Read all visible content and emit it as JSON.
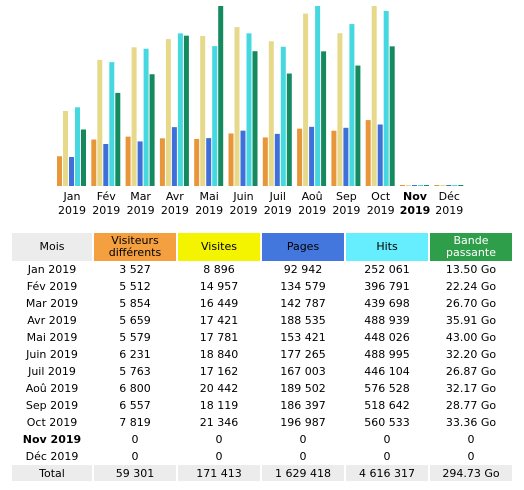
{
  "chart_data": {
    "type": "bar",
    "categories": [
      "Jan 2019",
      "Fév 2019",
      "Mar 2019",
      "Avr 2019",
      "Mai 2019",
      "Juin 2019",
      "Juil 2019",
      "Aoû 2019",
      "Sep 2019",
      "Oct 2019",
      "Nov 2019",
      "Déc 2019"
    ],
    "series": [
      {
        "name": "Visiteurs différents",
        "color": "#e8963a",
        "values": [
          3527,
          5512,
          5854,
          5659,
          5579,
          6231,
          5763,
          6800,
          6557,
          7819,
          0,
          0
        ],
        "value_labels": [
          "3 527",
          "5 512",
          "5 854",
          "5 659",
          "5 579",
          "6 231",
          "5 763",
          "6 800",
          "6 557",
          "7 819",
          "0",
          "0"
        ]
      },
      {
        "name": "Visites",
        "color": "#e6d98a",
        "values": [
          8896,
          14957,
          16449,
          17421,
          17781,
          18840,
          17162,
          20442,
          18119,
          21346,
          0,
          0
        ],
        "value_labels": [
          "8 896",
          "14 957",
          "16 449",
          "17 421",
          "17 781",
          "18 840",
          "17 162",
          "20 442",
          "18 119",
          "21 346",
          "0",
          "0"
        ]
      },
      {
        "name": "Pages",
        "color": "#3f6fd8",
        "values": [
          92942,
          134579,
          142787,
          188535,
          153421,
          177265,
          167003,
          189502,
          186397,
          196987,
          0,
          0
        ],
        "value_labels": [
          "92 942",
          "134 579",
          "142 787",
          "188 535",
          "153 421",
          "177 265",
          "167 003",
          "189 502",
          "186 397",
          "196 987",
          "0",
          "0"
        ]
      },
      {
        "name": "Hits",
        "color": "#45d8e0",
        "values": [
          252061,
          396791,
          439698,
          488939,
          448026,
          488995,
          446104,
          576528,
          518642,
          560533,
          0,
          0
        ],
        "value_labels": [
          "252 061",
          "396 791",
          "439 698",
          "488 939",
          "448 026",
          "488 995",
          "446 104",
          "576 528",
          "518 642",
          "560 533",
          "0",
          "0"
        ]
      },
      {
        "name": "Bande passante",
        "color": "#148a5e",
        "values": [
          13.5,
          22.24,
          26.7,
          35.91,
          43,
          32.2,
          26.87,
          32.17,
          28.77,
          33.36,
          0,
          0
        ],
        "value_labels": [
          "13.50 Go",
          "22.24 Go",
          "26.70 Go",
          "35.91 Go",
          "43.00 Go",
          "32.20 Go",
          "26.87 Go",
          "32.17 Go",
          "28.77 Go",
          "33.36 Go",
          "0",
          "0"
        ]
      }
    ]
  },
  "table": {
    "month_header": "Mois",
    "total_label": "Total",
    "totals": [
      "59 301",
      "171 413",
      "1 629 418",
      "4 616 317",
      "294.73 Go"
    ]
  }
}
